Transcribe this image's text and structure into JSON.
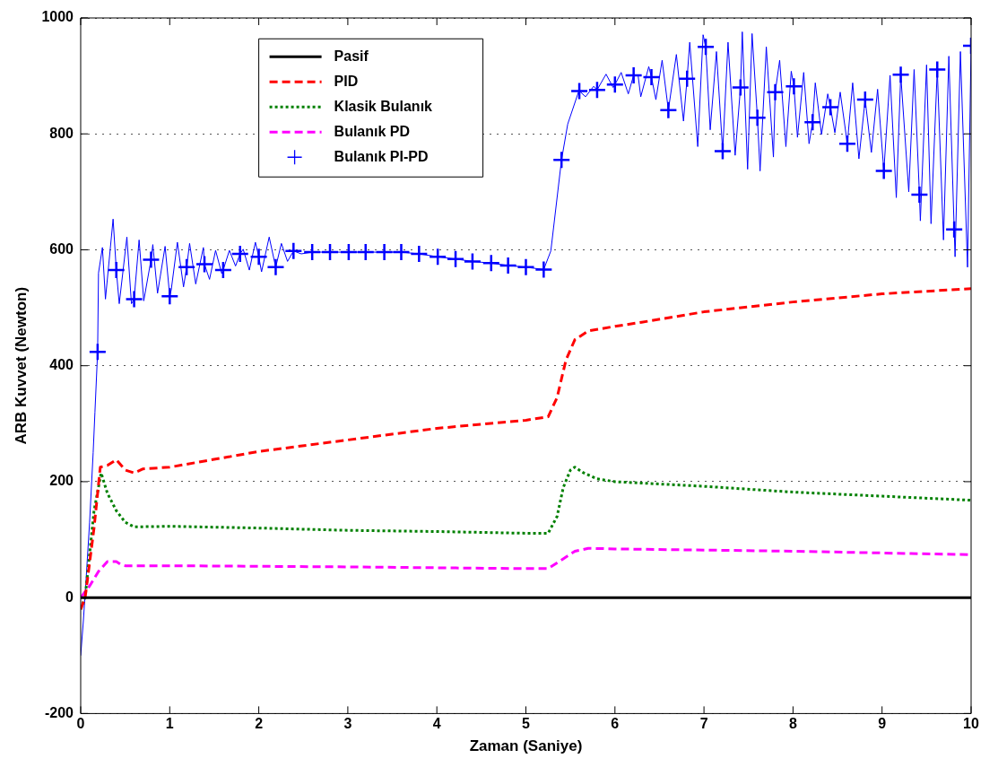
{
  "chart_data": {
    "type": "line",
    "xlabel": "Zaman (Saniye)",
    "ylabel": "ARB Kuvvet (Newton)",
    "xlim": [
      0,
      10
    ],
    "xticks": [
      0,
      1,
      2,
      3,
      4,
      5,
      6,
      7,
      8,
      9,
      10
    ],
    "ylim": [
      -200,
      1000
    ],
    "yticks": [
      -200,
      0,
      200,
      400,
      600,
      800,
      1000
    ],
    "grid": "y",
    "legend": "top left",
    "series": [
      {
        "name": "Pasif",
        "color": "#000000",
        "line_style": "solid",
        "x": [
          0,
          10
        ],
        "values": [
          0,
          0
        ]
      },
      {
        "name": "PID",
        "color": "#ff0000",
        "line_style": "dashed",
        "x": [
          0,
          0.05,
          0.15,
          0.22,
          0.3,
          0.4,
          0.5,
          0.6,
          0.7,
          1,
          2,
          3,
          4,
          5,
          5.25,
          5.35,
          5.45,
          5.55,
          5.7,
          6,
          6.3,
          7,
          8,
          9,
          10
        ],
        "values": [
          -20,
          0,
          120,
          225,
          228,
          238,
          220,
          215,
          222,
          225,
          252,
          272,
          292,
          306,
          312,
          345,
          410,
          445,
          460,
          468,
          475,
          493,
          510,
          524,
          533
        ]
      },
      {
        "name": "Klasik Bulanık",
        "color": "#008000",
        "line_style": "dotted",
        "x": [
          0,
          0.05,
          0.15,
          0.23,
          0.3,
          0.4,
          0.5,
          0.6,
          1,
          2,
          3,
          4,
          5,
          5.25,
          5.35,
          5.42,
          5.5,
          5.55,
          5.65,
          5.8,
          6,
          7,
          8,
          9,
          10
        ],
        "values": [
          -20,
          0,
          150,
          215,
          180,
          150,
          130,
          122,
          123,
          120,
          116,
          114,
          111,
          111,
          140,
          190,
          220,
          225,
          215,
          205,
          200,
          192,
          182,
          175,
          168
        ]
      },
      {
        "name": "Bulanık PD",
        "color": "#ff00ff",
        "line_style": "dashed",
        "x": [
          0,
          0.1,
          0.2,
          0.3,
          0.4,
          0.45,
          0.5,
          1,
          3,
          5,
          5.25,
          5.4,
          5.55,
          5.7,
          6,
          8,
          10
        ],
        "values": [
          0,
          20,
          45,
          62,
          62,
          57,
          55,
          55,
          53,
          50,
          50,
          65,
          80,
          85,
          84,
          80,
          74
        ]
      },
      {
        "color": "#0000ff",
        "line_style": "solid",
        "x": [
          0,
          0.03,
          0.06,
          0.1,
          0.14,
          0.16,
          0.19,
          0.2,
          0.244,
          0.278,
          0.364,
          0.4,
          0.433,
          0.519,
          0.57,
          0.6,
          0.656,
          0.708,
          0.79,
          0.81,
          0.863,
          0.948,
          1.0,
          1.017,
          1.086,
          1.155,
          1.19,
          1.223,
          1.292,
          1.378,
          1.39,
          1.447,
          1.515,
          1.584,
          1.6,
          1.67,
          1.739,
          1.79,
          1.825,
          1.894,
          1.962,
          2.0,
          2.031,
          2.117,
          2.19,
          2.254,
          2.323,
          2.39,
          2.477,
          2.6,
          2.8,
          3.01,
          3.2,
          3.41,
          3.6,
          3.8,
          4.01,
          4.21,
          4.4,
          4.61,
          4.8,
          5.0,
          5.2,
          5.28,
          5.4,
          5.47,
          5.59,
          5.6,
          5.67,
          5.76,
          5.8,
          5.9,
          5.98,
          6.0,
          6.07,
          6.15,
          6.21,
          6.26,
          6.29,
          6.38,
          6.41,
          6.46,
          6.53,
          6.6,
          6.69,
          6.77,
          6.81,
          6.84,
          6.93,
          6.99,
          7.02,
          7.07,
          7.14,
          7.21,
          7.27,
          7.35,
          7.41,
          7.43,
          7.49,
          7.54,
          7.6,
          7.63,
          7.7,
          7.78,
          7.8,
          7.85,
          7.92,
          7.98,
          8.01,
          8.05,
          8.12,
          8.18,
          8.22,
          8.25,
          8.32,
          8.39,
          8.42,
          8.47,
          8.53,
          8.61,
          8.67,
          8.74,
          8.81,
          8.88,
          8.95,
          9.02,
          9.09,
          9.16,
          9.21,
          9.3,
          9.36,
          9.42,
          9.43,
          9.5,
          9.55,
          9.62,
          9.69,
          9.75,
          9.81,
          9.82,
          9.88,
          9.96,
          10.0
        ],
        "values": [
          -100,
          -40,
          30,
          130,
          250,
          320,
          424,
          560,
          604,
          515,
          653,
          565,
          507,
          622,
          507,
          515,
          617,
          512,
          583,
          609,
          525,
          606,
          520,
          531,
          613,
          536,
          570,
          611,
          541,
          604,
          575,
          549,
          599,
          559,
          565,
          599,
          572,
          593,
          601,
          565,
          613,
          588,
          562,
          622,
          570,
          611,
          580,
          598,
          593,
          596,
          596,
          596,
          596,
          596,
          596,
          593,
          588,
          584,
          580,
          577,
          573,
          570,
          566,
          598,
          755,
          817,
          872,
          874,
          864,
          882,
          876,
          903,
          880,
          885,
          906,
          869,
          901,
          901,
          864,
          916,
          898,
          859,
          927,
          841,
          937,
          822,
          895,
          958,
          778,
          971,
          950,
          807,
          942,
          770,
          958,
          763,
          880,
          976,
          739,
          973,
          828,
          736,
          950,
          760,
          872,
          927,
          778,
          908,
          882,
          794,
          906,
          783,
          820,
          888,
          799,
          869,
          846,
          802,
          872,
          783,
          888,
          757,
          859,
          768,
          877,
          736,
          901,
          690,
          902,
          700,
          911,
          695,
          650,
          919,
          645,
          911,
          617,
          934,
          635,
          588,
          942,
          570,
          952
        ]
      },
      {
        "name": "Bulanık PI-PD",
        "type": "scatter",
        "marker": "cross",
        "color": "#0000ff",
        "x": [
          0.19,
          0.4,
          0.6,
          0.79,
          1.0,
          1.19,
          1.39,
          1.6,
          1.79,
          2.0,
          2.19,
          2.39,
          2.6,
          2.8,
          3.01,
          3.2,
          3.41,
          3.6,
          3.8,
          4.01,
          4.21,
          4.4,
          4.61,
          4.8,
          5.0,
          5.2,
          5.4,
          5.6,
          5.8,
          6.0,
          6.21,
          6.41,
          6.6,
          6.81,
          7.02,
          7.21,
          7.41,
          7.6,
          7.8,
          8.01,
          8.22,
          8.42,
          8.61,
          8.81,
          9.02,
          9.21,
          9.42,
          9.62,
          9.81,
          10.0
        ],
        "values": [
          424,
          565,
          515,
          583,
          520,
          570,
          575,
          565,
          593,
          588,
          570,
          598,
          596,
          596,
          596,
          596,
          596,
          596,
          593,
          588,
          584,
          580,
          577,
          573,
          570,
          566,
          755,
          874,
          876,
          885,
          901,
          898,
          841,
          895,
          950,
          770,
          880,
          828,
          872,
          882,
          820,
          846,
          783,
          859,
          736,
          902,
          695,
          911,
          635,
          952
        ]
      }
    ]
  }
}
